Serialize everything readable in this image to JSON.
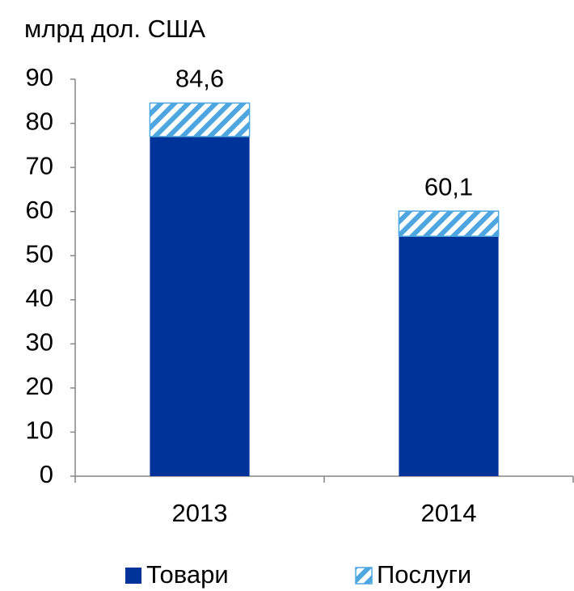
{
  "chart_data": {
    "type": "stacked_bar",
    "title": "млрд дол. США",
    "categories": [
      "2013",
      "2014"
    ],
    "series": [
      {
        "name": "Товари",
        "color": "#003399",
        "values": [
          77.0,
          54.4
        ]
      },
      {
        "name": "Послуги",
        "color": "#4da6e0",
        "pattern": "hatch",
        "values": [
          7.6,
          5.7
        ]
      }
    ],
    "totals": [
      84.6,
      60.1
    ],
    "total_labels": [
      "84,6",
      "60,1"
    ],
    "ylim": [
      0,
      90
    ],
    "yticks": [
      0,
      10,
      20,
      30,
      40,
      50,
      60,
      70,
      80,
      90
    ],
    "grid": false,
    "legend": "bottom"
  }
}
